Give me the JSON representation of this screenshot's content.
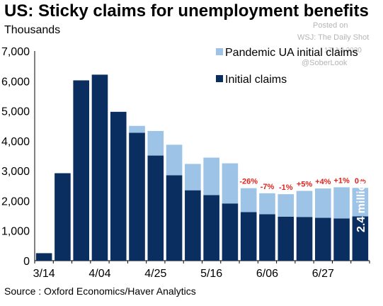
{
  "title": "US: Sticky claims for unemployment benefits",
  "units_label": "Thousands",
  "watermark": {
    "posted": "Posted on",
    "source": "WSJ: The Daily Shot",
    "date": "17-Jul-2020",
    "handle": "@SoberLook"
  },
  "source_note": "Source : Oxford Economics/Haver Analytics",
  "colors": {
    "initial": "#0b2e60",
    "pandemic": "#9dc3e6",
    "pct_label": "#e0231c"
  },
  "chart_data": {
    "type": "bar",
    "stacked": true,
    "title": "US: Sticky claims for unemployment benefits",
    "ylabel": "Thousands",
    "ylim": [
      0,
      7000
    ],
    "yticks": [
      "0",
      "1,000",
      "2,000",
      "3,000",
      "4,000",
      "5,000",
      "6,000",
      "7,000"
    ],
    "x_tick_labels": [
      "3/14",
      "4/04",
      "4/25",
      "5/16",
      "6/06",
      "6/27"
    ],
    "categories": [
      "3/14",
      "3/21",
      "3/28",
      "4/04",
      "4/11",
      "4/18",
      "4/25",
      "5/02",
      "5/09",
      "5/16",
      "5/23",
      "5/30",
      "6/06",
      "6/13",
      "6/20",
      "6/27",
      "7/04",
      "7/11"
    ],
    "series": [
      {
        "name": "Initial claims",
        "values": [
          250,
          2920,
          6020,
          6210,
          4970,
          4270,
          3510,
          2850,
          2350,
          2190,
          1910,
          1620,
          1550,
          1470,
          1460,
          1430,
          1410,
          1480
        ]
      },
      {
        "name": "Pandemic UA initial claims",
        "values": [
          0,
          0,
          0,
          0,
          0,
          230,
          820,
          1020,
          880,
          1250,
          1340,
          800,
          700,
          750,
          870,
          980,
          1040,
          950
        ]
      }
    ],
    "legend_position": "top-right",
    "annotations": {
      "pct_changes": [
        "-26%",
        "-7%",
        "-1%",
        "+5%",
        "+4%",
        "+1%",
        "0%"
      ],
      "pct_start_index": 11,
      "last_bar_label": "2.4 million"
    }
  }
}
